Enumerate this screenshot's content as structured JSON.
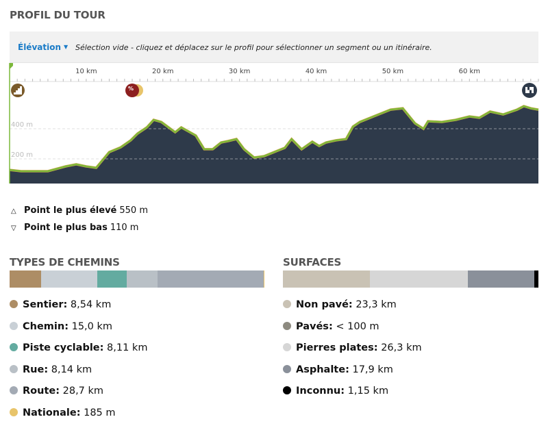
{
  "title": "PROFIL DU TOUR",
  "toolbar": {
    "dropdown_label": "Élévation",
    "hint": "Sélection vide - cliquez et déplacez sur le profil pour sélectionner un segment ou un itinéraire."
  },
  "chart_data": {
    "type": "area",
    "xlabel": "",
    "ylabel": "",
    "x_unit": "km",
    "x_ticks": [
      "10 km",
      "20 km",
      "30 km",
      "40 km",
      "50 km",
      "60 km"
    ],
    "x_tick_values": [
      10,
      20,
      30,
      40,
      50,
      60
    ],
    "y_ticks": [
      "200 m",
      "400 m"
    ],
    "y_tick_values": [
      200,
      400
    ],
    "xlim": [
      0,
      69
    ],
    "ylim": [
      36,
      836
    ],
    "points": [
      [
        0,
        127
      ],
      [
        1.5,
        118
      ],
      [
        5,
        118
      ],
      [
        7.3,
        150
      ],
      [
        8.7,
        164
      ],
      [
        10,
        150
      ],
      [
        11.3,
        141
      ],
      [
        13,
        245
      ],
      [
        14.5,
        277
      ],
      [
        15.8,
        323
      ],
      [
        16.7,
        368
      ],
      [
        17.9,
        409
      ],
      [
        18.8,
        459
      ],
      [
        19.8,
        445
      ],
      [
        21.6,
        377
      ],
      [
        22.4,
        409
      ],
      [
        24.3,
        355
      ],
      [
        25.4,
        264
      ],
      [
        26.5,
        264
      ],
      [
        27.6,
        309
      ],
      [
        28.5,
        318
      ],
      [
        29.6,
        332
      ],
      [
        30.6,
        264
      ],
      [
        31.9,
        209
      ],
      [
        33.2,
        218
      ],
      [
        35,
        255
      ],
      [
        35.9,
        273
      ],
      [
        36.8,
        332
      ],
      [
        38.1,
        264
      ],
      [
        39.5,
        314
      ],
      [
        40.4,
        286
      ],
      [
        41.3,
        309
      ],
      [
        42.6,
        323
      ],
      [
        43.9,
        332
      ],
      [
        44.8,
        414
      ],
      [
        45.7,
        445
      ],
      [
        47.5,
        482
      ],
      [
        49.7,
        527
      ],
      [
        51.3,
        536
      ],
      [
        52.9,
        436
      ],
      [
        54,
        400
      ],
      [
        54.6,
        450
      ],
      [
        56.4,
        445
      ],
      [
        58.2,
        459
      ],
      [
        60,
        482
      ],
      [
        61.3,
        473
      ],
      [
        62.7,
        514
      ],
      [
        64.4,
        495
      ],
      [
        66.2,
        527
      ],
      [
        67.1,
        550
      ],
      [
        68,
        536
      ],
      [
        69,
        527
      ]
    ],
    "fill_color": "#2e3a4a",
    "line_color": "#7cb83a",
    "markers": [
      "start-icon",
      "gradient-percent-icon",
      "finish-flag-icon"
    ]
  },
  "stats": {
    "highest_label": "Point le plus élevé",
    "highest_value": "550 m",
    "lowest_label": "Point le plus bas",
    "lowest_value": "110 m"
  },
  "way_types": {
    "title": "TYPES DE CHEMINS",
    "items": [
      {
        "label": "Sentier:",
        "value": "8,54 km",
        "km": 8.54,
        "color": "#ad8d65"
      },
      {
        "label": "Chemin:",
        "value": "15,0 km",
        "km": 15.0,
        "color": "#c9d0d6"
      },
      {
        "label": "Piste cyclable:",
        "value": "8,11 km",
        "km": 8.11,
        "color": "#63aba0"
      },
      {
        "label": "Rue:",
        "value": "8,14 km",
        "km": 8.14,
        "color": "#b9c0c6"
      },
      {
        "label": "Route:",
        "value": "28,7 km",
        "km": 28.7,
        "color": "#a3aab4"
      },
      {
        "label": "Nationale:",
        "value": "185 m",
        "km": 0.185,
        "color": "#e8c46a"
      }
    ]
  },
  "surfaces": {
    "title": "SURFACES",
    "items": [
      {
        "label": "Non pavé:",
        "value": "23,3 km",
        "km": 23.3,
        "color": "#c9c2b4"
      },
      {
        "label": "Pavés:",
        "value": "< 100 m",
        "km": 0.05,
        "color": "#8d8a80"
      },
      {
        "label": "Pierres plates:",
        "value": "26,3 km",
        "km": 26.3,
        "color": "#d6d6d6"
      },
      {
        "label": "Asphalte:",
        "value": "17,9 km",
        "km": 17.9,
        "color": "#8a909a"
      },
      {
        "label": "Inconnu:",
        "value": "1,15 km",
        "km": 1.15,
        "color": "#000000"
      }
    ]
  }
}
